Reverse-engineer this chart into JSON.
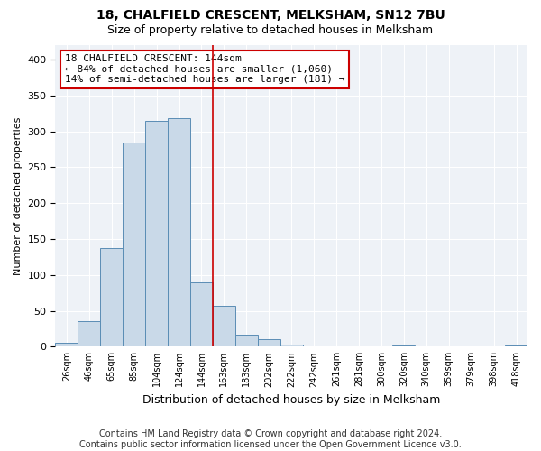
{
  "title1": "18, CHALFIELD CRESCENT, MELKSHAM, SN12 7BU",
  "title2": "Size of property relative to detached houses in Melksham",
  "xlabel": "Distribution of detached houses by size in Melksham",
  "ylabel": "Number of detached properties",
  "footer1": "Contains HM Land Registry data © Crown copyright and database right 2024.",
  "footer2": "Contains public sector information licensed under the Open Government Licence v3.0.",
  "bin_labels": [
    "26sqm",
    "46sqm",
    "65sqm",
    "85sqm",
    "104sqm",
    "124sqm",
    "144sqm",
    "163sqm",
    "183sqm",
    "202sqm",
    "222sqm",
    "242sqm",
    "261sqm",
    "281sqm",
    "300sqm",
    "320sqm",
    "340sqm",
    "359sqm",
    "379sqm",
    "398sqm",
    "418sqm"
  ],
  "bar_heights": [
    6,
    35,
    137,
    284,
    314,
    318,
    90,
    57,
    17,
    10,
    3,
    1,
    0,
    1,
    0,
    2,
    0,
    1,
    0,
    0,
    2
  ],
  "bar_color": "#c9d9e8",
  "bar_edge_color": "#5a8db5",
  "highlight_index": 6,
  "highlight_line_color": "#cc0000",
  "annotation_text": "18 CHALFIELD CRESCENT: 144sqm\n← 84% of detached houses are smaller (1,060)\n14% of semi-detached houses are larger (181) →",
  "annotation_box_color": "#ffffff",
  "annotation_box_edge_color": "#cc0000",
  "ylim": [
    0,
    420
  ],
  "yticks": [
    0,
    50,
    100,
    150,
    200,
    250,
    300,
    350,
    400
  ],
  "plot_bg_color": "#eef2f7",
  "title1_fontsize": 10,
  "title2_fontsize": 9,
  "xlabel_fontsize": 9,
  "ylabel_fontsize": 8,
  "tick_fontsize": 8,
  "xtick_fontsize": 7,
  "footer_fontsize": 7,
  "annotation_fontsize": 8
}
